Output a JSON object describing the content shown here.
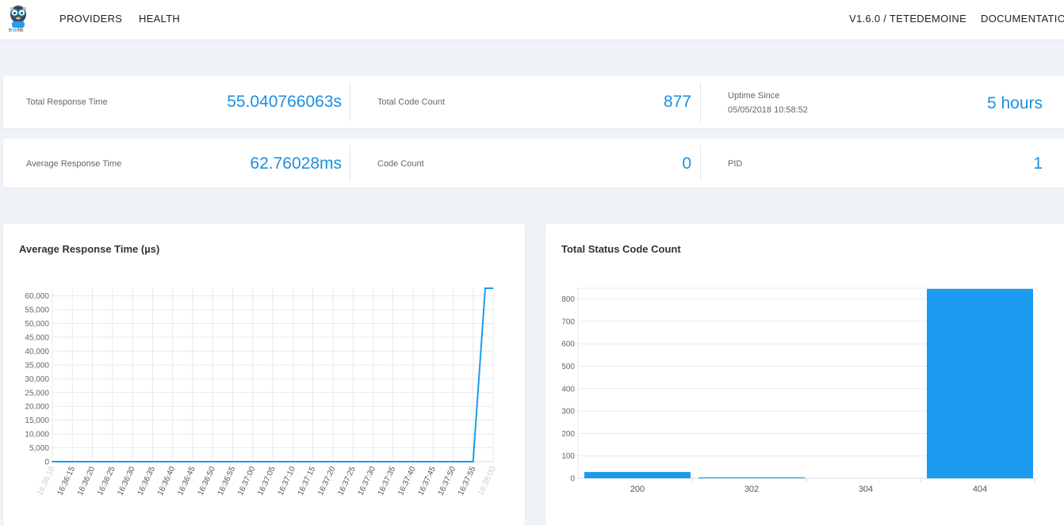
{
  "nav": {
    "logo_text_a": "tr",
    "logo_text_b": "æ",
    "logo_text_c": "fik",
    "providers": "PROVIDERS",
    "health": "HEALTH",
    "version": "V1.6.0 / TETEDEMOINE",
    "documentation": "DOCUMENTATION"
  },
  "stats": {
    "total_response_time_label": "Total Response Time",
    "total_response_time_value": "55.040766063s",
    "total_code_count_label": "Total Code Count",
    "total_code_count_value": "877",
    "uptime_label": "Uptime Since",
    "uptime_since": "05/05/2018 10:58:52",
    "uptime_value": "5 hours",
    "average_response_time_label": "Average Response Time",
    "average_response_time_value": "62.76028ms",
    "code_count_label": "Code Count",
    "code_count_value": "0",
    "pid_label": "PID",
    "pid_value": "1"
  },
  "colors": {
    "accent": "#1a9bf0",
    "value_text": "#1a8fe0"
  },
  "chart_data": [
    {
      "type": "line",
      "title": "Average Response Time (µs)",
      "x": [
        "16:36:10",
        "16:36:15",
        "16:36:20",
        "16:36:25",
        "16:36:30",
        "16:36:35",
        "16:36:40",
        "16:36:45",
        "16:36:50",
        "16:36:55",
        "16:37:00",
        "16:37:05",
        "16:37:10",
        "16:37:15",
        "16:37:20",
        "16:37:25",
        "16:37:30",
        "16:37:35",
        "16:37:40",
        "16:37:45",
        "16:37:50",
        "16:37:55",
        "16:38:00"
      ],
      "series": [
        {
          "values": [
            0,
            0,
            0,
            0,
            0,
            0,
            0,
            0,
            0,
            0,
            0,
            0,
            0,
            0,
            0,
            0,
            0,
            0,
            0,
            0,
            0,
            0,
            62760
          ]
        }
      ],
      "y_ticks": [
        "0",
        "5,000",
        "10,000",
        "15,000",
        "20,000",
        "25,000",
        "30,000",
        "35,000",
        "40,000",
        "45,000",
        "50,000",
        "55,000",
        "60,000"
      ],
      "ylim": [
        0,
        62760
      ],
      "grid": true
    },
    {
      "type": "bar",
      "title": "Total Status Code Count",
      "categories": [
        "200",
        "302",
        "304",
        "404"
      ],
      "values": [
        28,
        4,
        0,
        845
      ],
      "y_ticks": [
        "0",
        "100",
        "200",
        "300",
        "400",
        "500",
        "600",
        "700",
        "800"
      ],
      "ylim": [
        0,
        845
      ],
      "grid": true
    }
  ]
}
